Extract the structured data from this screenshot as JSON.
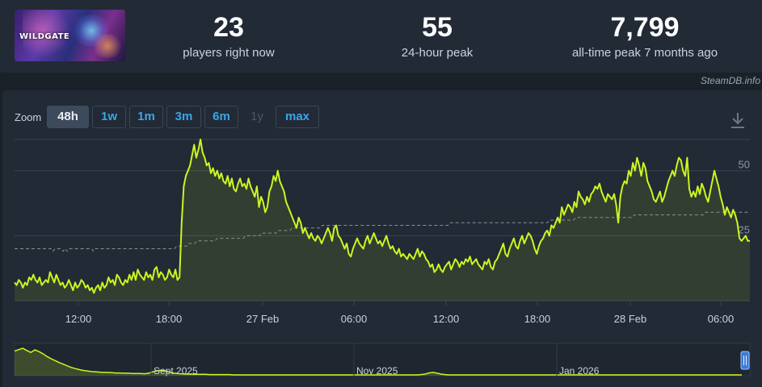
{
  "header": {
    "logo_text": "WILDGATE",
    "stats": [
      {
        "value": "23",
        "label": "players right now"
      },
      {
        "value": "55",
        "label": "24-hour peak"
      },
      {
        "value": "7,799",
        "label": "all-time peak 7 months ago"
      }
    ],
    "credit": "SteamDB.info"
  },
  "zoom": {
    "label": "Zoom",
    "buttons": [
      "48h",
      "1w",
      "1m",
      "3m",
      "6m",
      "1y",
      "max"
    ],
    "active": "48h",
    "disabled": [
      "1y"
    ]
  },
  "colors": {
    "line": "#cdf521",
    "average": "#8a8f94",
    "grid": "#3a4350",
    "text": "#c6d4df",
    "accent": "#3ba6e8"
  },
  "chart_data": [
    {
      "type": "line",
      "title": "",
      "ylim": [
        0,
        62
      ],
      "yticks": [
        25,
        50
      ],
      "xticks": [
        "12:00",
        "18:00",
        "27 Feb",
        "06:00",
        "12:00",
        "18:00",
        "28 Feb",
        "06:00"
      ],
      "grid": true,
      "series": [
        {
          "values": [
            7,
            6,
            8,
            7,
            5,
            7,
            6,
            9,
            8,
            10,
            8,
            7,
            9,
            6,
            7,
            8,
            7,
            11,
            9,
            7,
            10,
            8,
            6,
            7,
            5,
            6,
            8,
            6,
            4,
            7,
            5,
            6,
            8,
            7,
            5,
            6,
            4,
            5,
            3,
            5,
            6,
            4,
            7,
            5,
            6,
            9,
            7,
            8,
            6,
            10,
            9,
            7,
            6,
            8,
            7,
            10,
            8,
            11,
            8,
            12,
            10,
            9,
            8,
            11,
            9,
            10,
            8,
            12,
            13,
            9,
            11,
            10,
            8,
            9,
            12,
            10,
            9,
            12,
            8,
            9,
            30,
            44,
            48,
            50,
            52,
            56,
            60,
            55,
            58,
            62,
            57,
            55,
            52,
            53,
            49,
            51,
            48,
            50,
            47,
            49,
            46,
            45,
            48,
            44,
            47,
            43,
            42,
            45,
            47,
            44,
            45,
            43,
            47,
            44,
            42,
            40,
            44,
            36,
            40,
            38,
            34,
            36,
            42,
            44,
            48,
            46,
            50,
            46,
            44,
            42,
            38,
            36,
            34,
            32,
            30,
            28,
            32,
            30,
            26,
            28,
            26,
            24,
            26,
            24,
            23,
            25,
            24,
            22,
            24,
            26,
            28,
            26,
            23,
            28,
            29,
            25,
            24,
            22,
            20,
            22,
            18,
            17,
            20,
            22,
            24,
            22,
            21,
            20,
            23,
            25,
            22,
            24,
            26,
            24,
            22,
            23,
            21,
            23,
            25,
            22,
            20,
            21,
            19,
            18,
            20,
            17,
            18,
            17,
            16,
            18,
            17,
            16,
            18,
            20,
            17,
            19,
            18,
            16,
            15,
            13,
            14,
            11,
            12,
            14,
            12,
            11,
            13,
            14,
            15,
            12,
            14,
            16,
            15,
            13,
            15,
            14,
            16,
            15,
            17,
            14,
            15,
            16,
            14,
            13,
            12,
            15,
            14,
            16,
            13,
            12,
            15,
            16,
            18,
            20,
            22,
            18,
            17,
            20,
            22,
            24,
            21,
            20,
            23,
            25,
            22,
            24,
            26,
            25,
            23,
            20,
            18,
            21,
            23,
            24,
            26,
            27,
            25,
            29,
            28,
            30,
            32,
            30,
            36,
            33,
            35,
            37,
            36,
            34,
            38,
            36,
            42,
            40,
            39,
            37,
            40,
            38,
            41,
            42,
            44,
            43,
            45,
            42,
            40,
            38,
            41,
            40,
            39,
            41,
            37,
            30,
            40,
            44,
            46,
            45,
            50,
            48,
            53,
            50,
            55,
            52,
            48,
            53,
            51,
            46,
            44,
            42,
            39,
            38,
            40,
            42,
            38,
            40,
            43,
            46,
            48,
            50,
            48,
            52,
            55,
            54,
            50,
            48,
            55,
            43,
            40,
            42,
            40,
            44,
            41,
            45,
            43,
            40,
            38,
            42,
            46,
            50,
            47,
            44,
            40,
            37,
            33,
            36,
            34,
            32,
            35,
            33,
            30,
            24,
            23,
            24,
            25,
            23,
            23
          ]
        },
        {
          "name": "average",
          "values": [
            20,
            20,
            20,
            20,
            20,
            20,
            20,
            20,
            20,
            20,
            20,
            20,
            20,
            20,
            20,
            20,
            20,
            20,
            20,
            19,
            20,
            20,
            20,
            20,
            19,
            20,
            19,
            20,
            20,
            20,
            20,
            20,
            20,
            20,
            20,
            20,
            20,
            20,
            20,
            19,
            20,
            20,
            20,
            20,
            20,
            20,
            20,
            20,
            20,
            20,
            20,
            20,
            20,
            20,
            20,
            20,
            20,
            20,
            20,
            20,
            20,
            20,
            20,
            20,
            20,
            20,
            20,
            20,
            20,
            20,
            20,
            20,
            20,
            20,
            20,
            20,
            20,
            20,
            20,
            20,
            21,
            21,
            21,
            21,
            21,
            21,
            22,
            22,
            22,
            22,
            23,
            23,
            23,
            23,
            23,
            23,
            23,
            23,
            23,
            23,
            24,
            24,
            24,
            24,
            24,
            24,
            24,
            24,
            24,
            24,
            24,
            24,
            24,
            24,
            25,
            25,
            25,
            25,
            25,
            25,
            25,
            25,
            26,
            26,
            26,
            26,
            26,
            26,
            26,
            26,
            27,
            27,
            27,
            27,
            27,
            27,
            27,
            28,
            28,
            28,
            28,
            28,
            28,
            28,
            28,
            28,
            28,
            28,
            28,
            28,
            28,
            28,
            29,
            29,
            29,
            29,
            29,
            29,
            29,
            29,
            29,
            29,
            29,
            29,
            29,
            29,
            29,
            29,
            29,
            29,
            29,
            29,
            29,
            29,
            29,
            29,
            29,
            29,
            29,
            29,
            29,
            29,
            29,
            29,
            29,
            29,
            29,
            29,
            29,
            29,
            29,
            29,
            29,
            29,
            29,
            29,
            29,
            29,
            29,
            29,
            29,
            29,
            29,
            29,
            29,
            29,
            29,
            29,
            29,
            29,
            29,
            29,
            29,
            29,
            29,
            30,
            30,
            30,
            30,
            30,
            30,
            30,
            30,
            30,
            30,
            30,
            30,
            30,
            30,
            30,
            30,
            30,
            30,
            30,
            30,
            30,
            30,
            30,
            30,
            30,
            30,
            30,
            30,
            30,
            30,
            30,
            30,
            30,
            30,
            30,
            30,
            30,
            30,
            30,
            30,
            30,
            30,
            30,
            30,
            30,
            30,
            30,
            30,
            30,
            31,
            31,
            31,
            31,
            31,
            31,
            31,
            31,
            31,
            31,
            31,
            31,
            31,
            32,
            32,
            32,
            32,
            32,
            32,
            32,
            32,
            32,
            32,
            32,
            32,
            32,
            32,
            32,
            32,
            32,
            32,
            32,
            32,
            32,
            32,
            32,
            32,
            32,
            32,
            32,
            32,
            32,
            33,
            33,
            33,
            33,
            33,
            33,
            33,
            33,
            33,
            33,
            33,
            33,
            33,
            33,
            33,
            33,
            33,
            33,
            33,
            33,
            33,
            33,
            33,
            33,
            33,
            33,
            33,
            33,
            33,
            33,
            33,
            33,
            33,
            33,
            33,
            34,
            34,
            34,
            34,
            34,
            34,
            34,
            34,
            34,
            34,
            34,
            34,
            34,
            34,
            34,
            34,
            34,
            34,
            34,
            34,
            34,
            34,
            34
          ]
        }
      ]
    },
    {
      "type": "area",
      "title": "",
      "xticks": [
        "Sept 2025",
        "Nov 2025",
        "Jan 2026"
      ],
      "ylim": [
        0,
        100
      ],
      "series": [
        {
          "values": [
            90,
            95,
            100,
            92,
            85,
            94,
            88,
            80,
            70,
            62,
            55,
            48,
            42,
            36,
            30,
            26,
            22,
            19,
            17,
            15,
            14,
            13,
            12,
            12,
            11,
            10,
            10,
            9,
            9,
            8,
            8,
            8,
            7,
            9,
            14,
            18,
            20,
            18,
            14,
            10,
            8,
            7,
            6,
            6,
            5,
            5,
            5,
            5,
            4,
            4,
            4,
            4,
            4,
            4,
            3,
            3,
            3,
            3,
            3,
            3,
            3,
            3,
            3,
            3,
            3,
            3,
            3,
            3,
            3,
            3,
            3,
            3,
            3,
            3,
            3,
            3,
            3,
            3,
            3,
            3,
            3,
            3,
            3,
            3,
            3,
            3,
            3,
            3,
            3,
            3,
            3,
            3,
            3,
            3,
            3,
            3,
            3,
            3,
            3,
            3,
            4,
            6,
            10,
            12,
            9,
            6,
            4,
            3,
            3,
            3,
            3,
            3,
            3,
            3,
            3,
            3,
            3,
            3,
            3,
            3,
            3,
            3,
            3,
            3,
            3,
            3,
            3,
            3,
            3,
            3,
            3,
            3,
            3,
            3,
            3,
            3,
            3,
            3,
            3,
            3,
            3,
            3,
            3,
            3,
            3,
            3,
            3,
            3,
            3,
            3,
            3,
            3,
            3,
            3,
            3,
            3,
            3,
            3,
            3,
            3,
            3,
            3,
            3,
            3,
            3,
            3,
            3,
            3,
            3,
            3,
            3,
            3,
            3,
            3,
            3,
            3,
            3,
            3,
            3,
            3
          ]
        }
      ]
    }
  ]
}
